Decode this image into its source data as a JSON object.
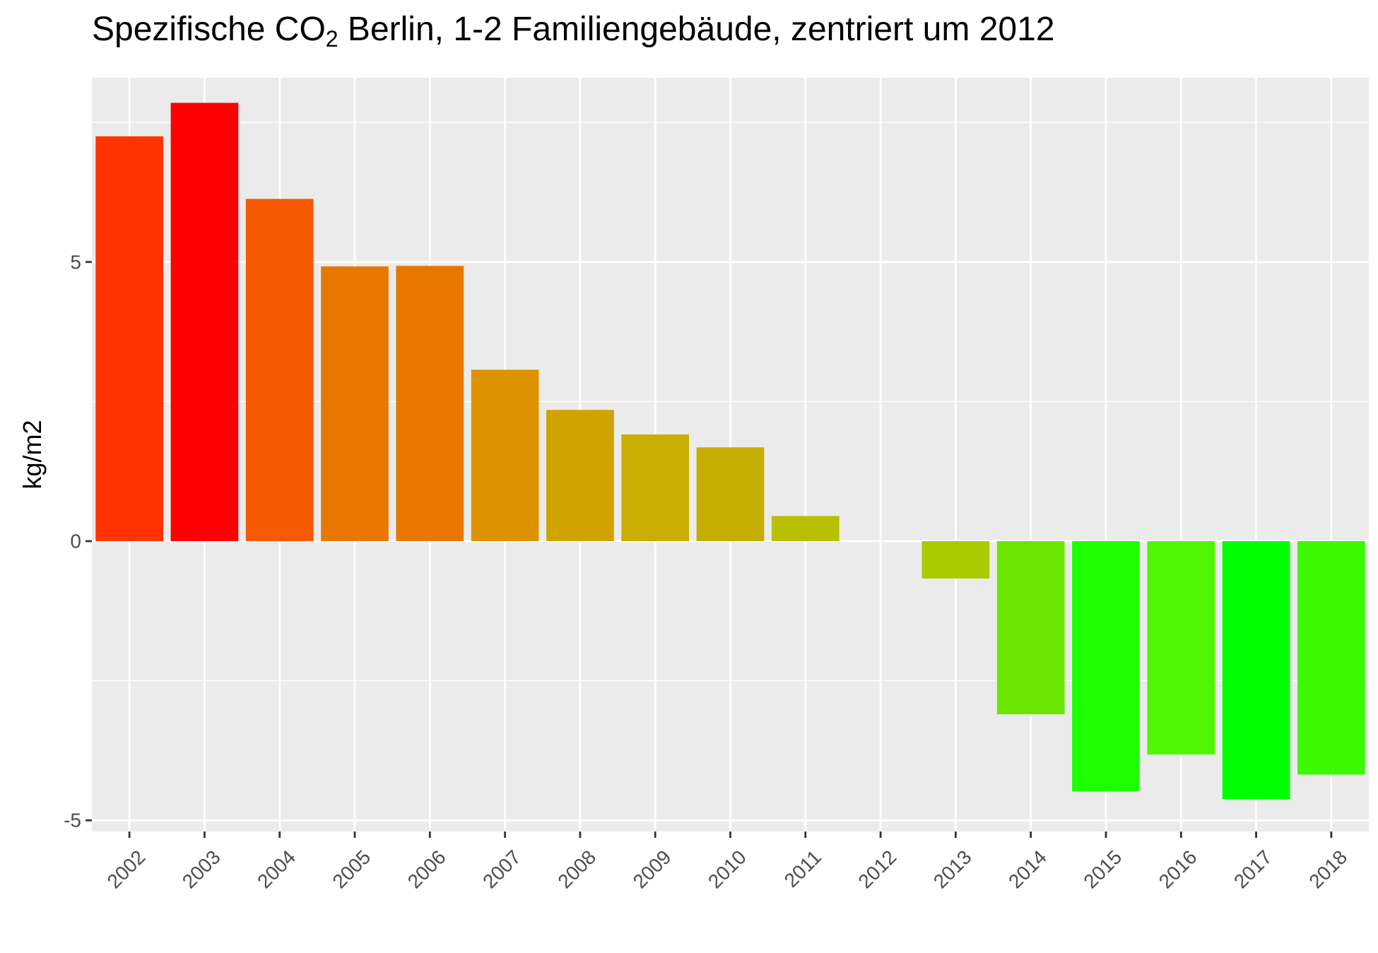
{
  "chart_data": {
    "type": "bar",
    "title": {
      "prefix": "Spezifische CO",
      "subscript": "2",
      "suffix": " Berlin, 1-2 Familiengebäude, zentriert um 2012"
    },
    "xlabel": "",
    "ylabel": "kg/m2",
    "categories": [
      "2002",
      "2003",
      "2004",
      "2005",
      "2006",
      "2007",
      "2008",
      "2009",
      "2010",
      "2011",
      "2012",
      "2013",
      "2014",
      "2015",
      "2016",
      "2017",
      "2018"
    ],
    "values": [
      7.25,
      7.85,
      6.13,
      4.92,
      4.93,
      3.07,
      2.35,
      1.91,
      1.68,
      0.45,
      0.0,
      -0.67,
      -3.1,
      -4.48,
      -3.82,
      -4.62,
      -4.18
    ],
    "colors": [
      "#FF3300",
      "#FF0000",
      "#F65A00",
      "#E87700",
      "#E87700",
      "#DD9200",
      "#D0A300",
      "#C9AD00",
      "#C5AE00",
      "#B6BF00",
      "#B9BD00",
      "#A9CB00",
      "#6BE600",
      "#1EFF00",
      "#4EF700",
      "#00FF00",
      "#3AF900"
    ],
    "ylim": [
      -5.2,
      8.3
    ],
    "yticks": [
      {
        "value": 5,
        "label": "5"
      },
      {
        "value": 0,
        "label": "0"
      },
      {
        "value": -5,
        "label": "-5"
      }
    ],
    "y_minor_gridlines": [
      7.5,
      2.5,
      -2.5
    ],
    "grid": true,
    "legend": "none",
    "panel_background": "#EBEBEB",
    "gridline_color": "#FFFFFF"
  }
}
